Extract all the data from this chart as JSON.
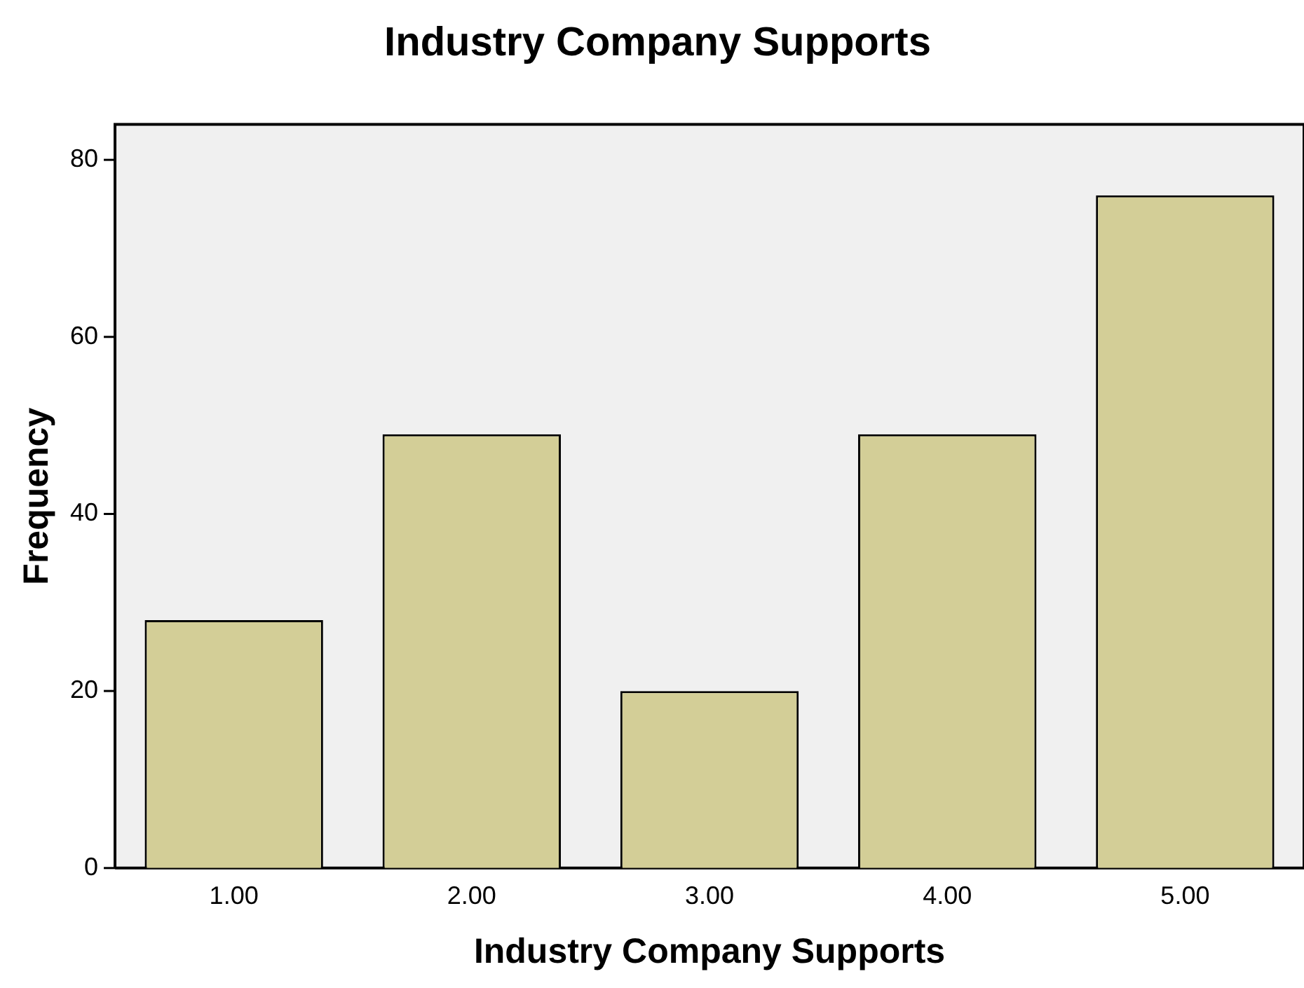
{
  "chart_data": {
    "type": "bar",
    "title": "Industry Company Supports",
    "xlabel": "Industry Company Supports",
    "ylabel": "Frequency",
    "categories": [
      "1.00",
      "2.00",
      "3.00",
      "4.00",
      "5.00"
    ],
    "values": [
      28,
      49,
      20,
      49,
      76
    ],
    "color": "#d3ce97",
    "ylim": [
      0,
      84
    ],
    "yticks": [
      0,
      20,
      40,
      60,
      80
    ],
    "grid": false,
    "legend": false
  }
}
